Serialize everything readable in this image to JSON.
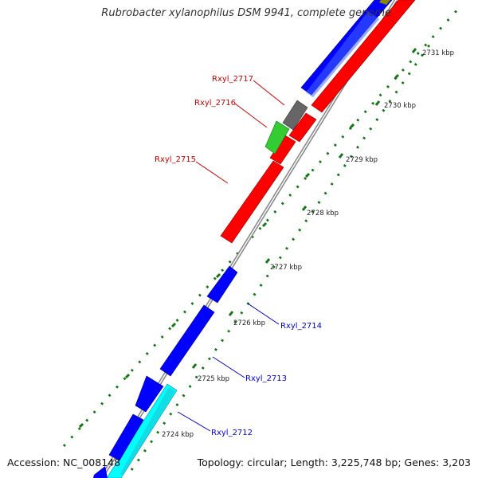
{
  "title": "Rubrobacter xylanophilus DSM 9941, complete genome",
  "footer": {
    "accession": "Accession: NC_008148",
    "info": "Topology: circular; Length: 3,225,748 bp; Genes: 3,203"
  },
  "colors": {
    "background": "#ffffff",
    "backbone": "#888888",
    "forward_gene": "#ff0000",
    "reverse_gene": "#0000ff",
    "gray_gene": "#666666",
    "green_gene": "#33cc33",
    "cyan_gene": "#00ffff",
    "tick": "#117711",
    "reverse_label": "#0000cc",
    "forward_label": "#cc0000"
  },
  "tick_labels": [
    "2724 kbp",
    "2725 kbp",
    "2726 kbp",
    "2727 kbp",
    "2728 kbp",
    "2729 kbp",
    "2730 kbp",
    "2731 kbp"
  ],
  "gene_labels": [
    {
      "text": "Rxyl_2717",
      "strand": "forward"
    },
    {
      "text": "Rxyl_2716",
      "strand": "forward"
    },
    {
      "text": "Rxyl_2715",
      "strand": "forward"
    },
    {
      "text": "Rxyl_2714",
      "strand": "reverse"
    },
    {
      "text": "Rxyl_2713",
      "strand": "reverse"
    },
    {
      "text": "Rxyl_2712",
      "strand": "reverse"
    }
  ]
}
